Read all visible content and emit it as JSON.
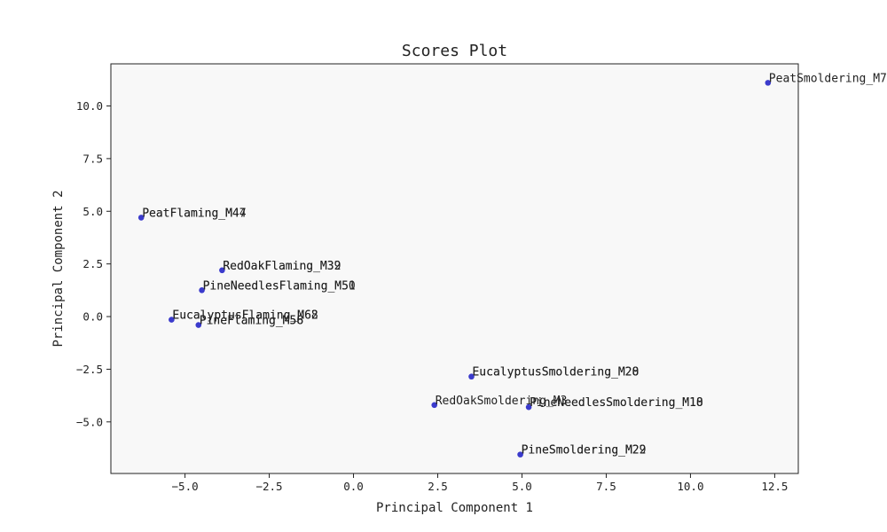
{
  "chart_data": {
    "type": "scatter",
    "title": "Scores Plot",
    "xlabel": "Principal Component 1",
    "ylabel": "Principal Component 2",
    "xlim": [
      -7.2,
      13.2
    ],
    "ylim": [
      -7.45,
      12.0
    ],
    "xticks": [
      -5.0,
      -2.5,
      0.0,
      2.5,
      5.0,
      7.5,
      10.0,
      12.5
    ],
    "xtick_labels": [
      "−5.0",
      "−2.5",
      "0.0",
      "2.5",
      "5.0",
      "7.5",
      "10.0",
      "12.5"
    ],
    "yticks": [
      -5.0,
      -2.5,
      0.0,
      2.5,
      5.0,
      7.5,
      10.0
    ],
    "ytick_labels": [
      "−5.0",
      "−2.5",
      "0.0",
      "2.5",
      "5.0",
      "7.5",
      "10.0"
    ],
    "grid": false,
    "colors": {
      "point": "#3b3bcc",
      "plot_background": "#f8f8f8",
      "frame": "#222222"
    },
    "points": [
      {
        "x": 12.3,
        "y": 11.1,
        "labels": [
          "PeatSmoldering_M7"
        ]
      },
      {
        "x": -6.3,
        "y": 4.7,
        "labels": [
          "PeatFlaming_M44",
          "PeatFlaming_M47"
        ]
      },
      {
        "x": -3.9,
        "y": 2.2,
        "labels": [
          "RedOakFlaming_M32",
          "RedOakFlaming_M39"
        ]
      },
      {
        "x": -4.5,
        "y": 1.25,
        "labels": [
          "PineNeedlesFlaming_M50",
          "PineNeedlesFlaming_M51"
        ]
      },
      {
        "x": -5.4,
        "y": -0.15,
        "labels": [
          "EucalyptusFlaming_M62",
          "EucalyptusFlaming_M68"
        ]
      },
      {
        "x": -4.6,
        "y": -0.4,
        "labels": [
          "PineFlaming_M56",
          "PineFlaming_M58"
        ]
      },
      {
        "x": 3.5,
        "y": -2.85,
        "labels": [
          "EucalyptusSmoldering_M20",
          "EucalyptusSmoldering_M28"
        ]
      },
      {
        "x": 2.4,
        "y": -4.2,
        "labels": [
          "RedOakSmoldering_M3"
        ]
      },
      {
        "x": 5.2,
        "y": -4.3,
        "labels": [
          "PineNeedlesSmoldering_M10",
          "PineNeedlesSmoldering_M18"
        ]
      },
      {
        "x": 4.95,
        "y": -6.55,
        "labels": [
          "PineSmoldering_M22",
          "PineSmoldering_M29"
        ]
      }
    ]
  }
}
